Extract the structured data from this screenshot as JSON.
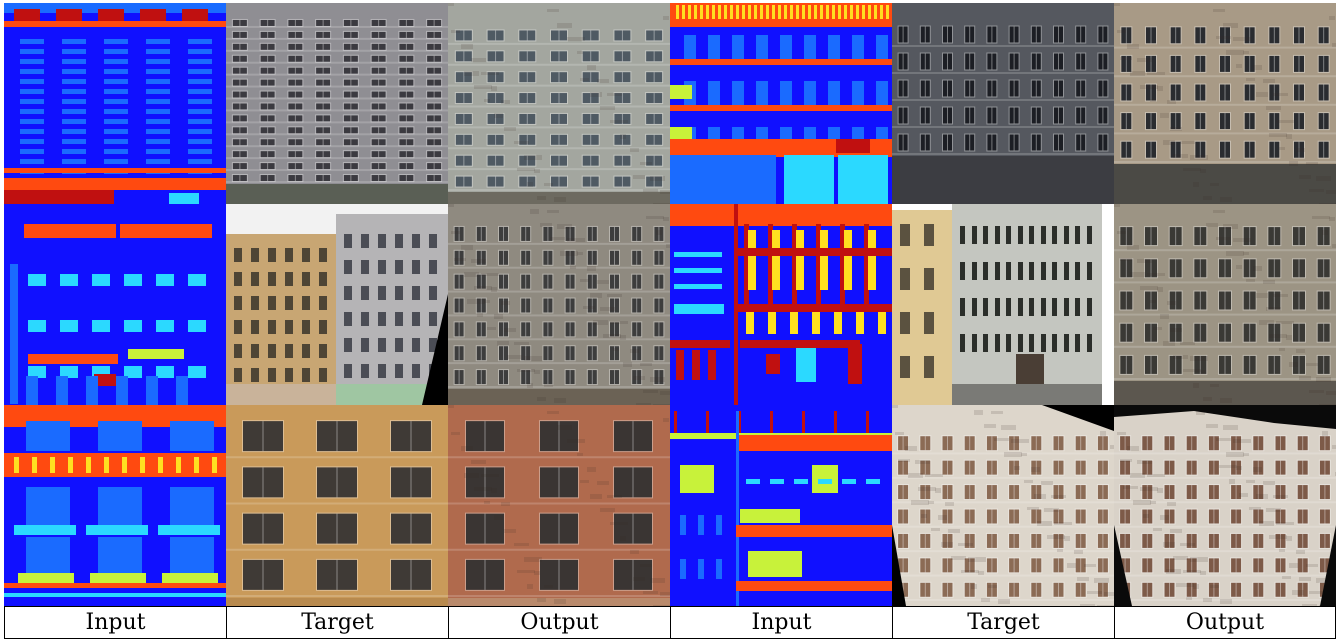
{
  "figure": {
    "columns": [
      "Input",
      "Target",
      "Output",
      "Input",
      "Target",
      "Output"
    ]
  },
  "palette": {
    "label_background": "#1010ff",
    "label_wall": "#1a6bff",
    "label_window": "#2bd9ff",
    "label_sill": "#ff4a10",
    "label_door": "#c01010",
    "label_balcony": "#c8f23a",
    "label_pillar": "#ffe020",
    "photo_stone_gray": "#8f8e93",
    "photo_warm_beige": "#c8a673",
    "photo_slate": "#55585f",
    "photo_cream": "#ddd6cb",
    "photo_ochre": "#c99a5a",
    "photo_brick": "#b06a4d"
  }
}
